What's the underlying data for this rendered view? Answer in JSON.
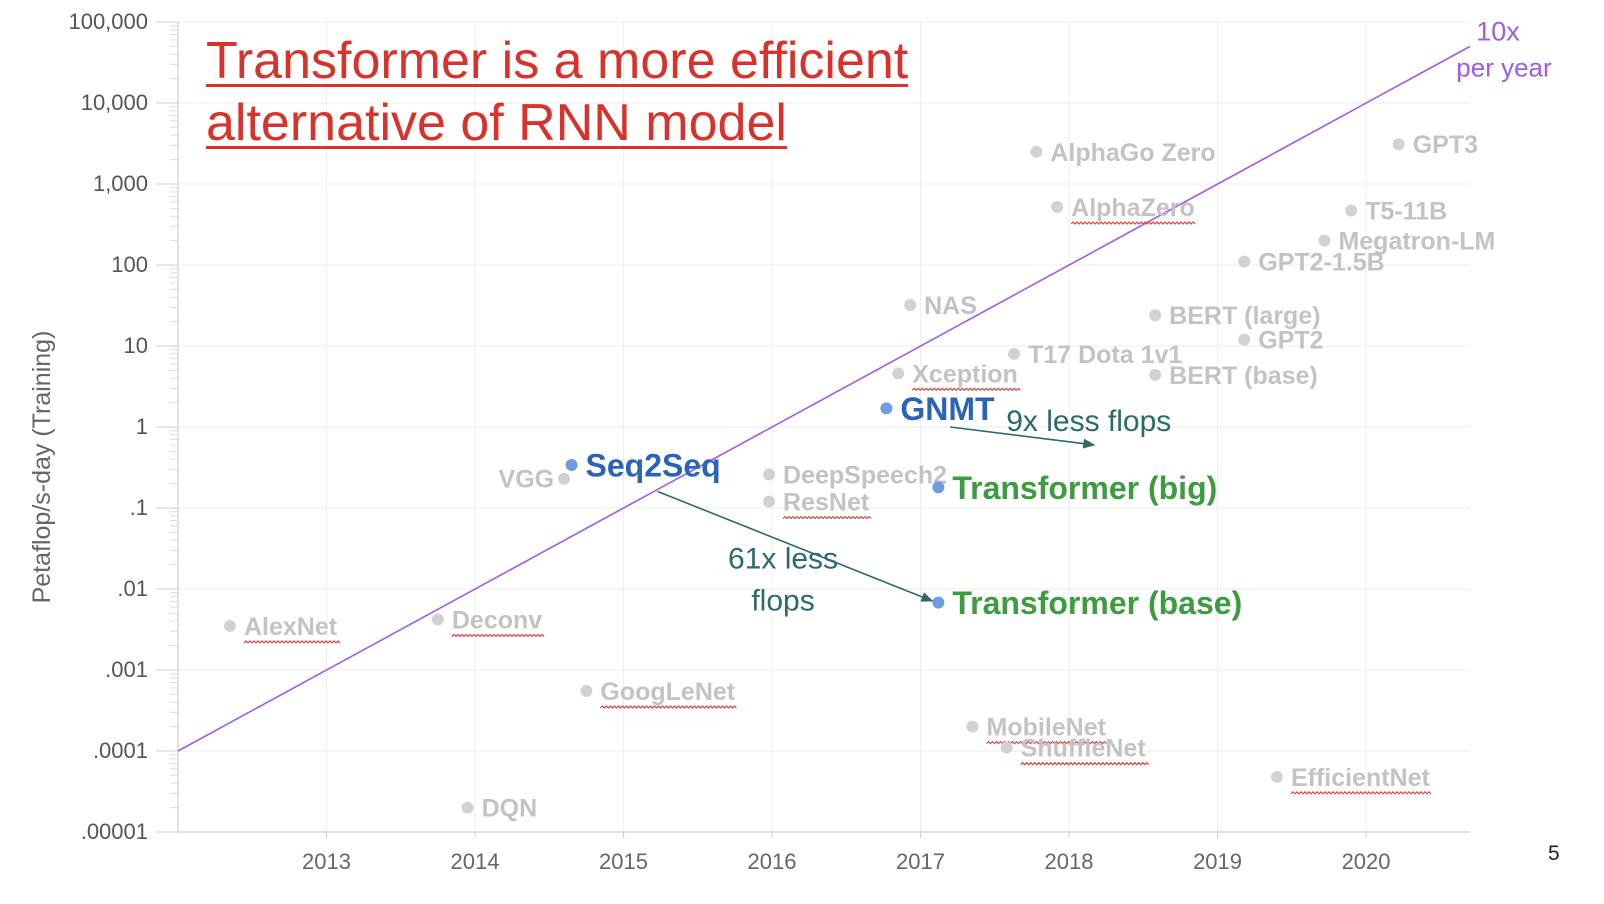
{
  "slide": {
    "headline": [
      "Transformer is a more efficient",
      "alternative of RNN model"
    ],
    "page_number": "5",
    "colors": {
      "headline": "#d9322b",
      "trend_line": "#a25be6",
      "highlight_blue": "#2a63b8",
      "highlight_green": "#3d9b40",
      "gray_label": "#c3c3c3",
      "arrow": "#2b6b6b"
    }
  },
  "chart_data": {
    "type": "scatter",
    "title": "",
    "xlabel": "",
    "ylabel": "Petaflop/s-day (Training)",
    "yscale": "log",
    "xlim": [
      2012.0,
      2020.7
    ],
    "ylim": [
      1e-05,
      100000
    ],
    "xticks": [
      "2013",
      "2014",
      "2015",
      "2016",
      "2017",
      "2018",
      "2019",
      "2020"
    ],
    "xtick_values": [
      2013,
      2014,
      2015,
      2016,
      2017,
      2018,
      2019,
      2020
    ],
    "yticks": [
      "100,000",
      "10,000",
      "1,000",
      "100",
      "10",
      "1",
      ".1",
      ".01",
      ".001",
      ".0001",
      ".00001"
    ],
    "ytick_values": [
      100000,
      10000,
      1000,
      100,
      10,
      1,
      0.1,
      0.01,
      0.001,
      0.0001,
      1e-05
    ],
    "grid": true,
    "trend_line": {
      "label": [
        "10x",
        "per year"
      ],
      "start": [
        2012.0,
        0.0001
      ],
      "end": [
        2020.7,
        50000
      ]
    },
    "points": [
      {
        "name": "AlexNet",
        "x": 2012.35,
        "y": 0.0035,
        "style": "gray",
        "label_pos": "right",
        "squiggle": true
      },
      {
        "name": "Deconv",
        "x": 2013.75,
        "y": 0.0042,
        "style": "gray",
        "label_pos": "right",
        "squiggle": true
      },
      {
        "name": "DQN",
        "x": 2013.95,
        "y": 2e-05,
        "style": "gray",
        "label_pos": "right",
        "squiggle": false
      },
      {
        "name": "VGG",
        "x": 2014.6,
        "y": 0.23,
        "style": "gray",
        "label_pos": "left",
        "squiggle": false
      },
      {
        "name": "Seq2Seq",
        "x": 2014.65,
        "y": 0.34,
        "style": "blue",
        "label_pos": "right",
        "squiggle": false
      },
      {
        "name": "GoogLeNet",
        "x": 2014.75,
        "y": 0.00055,
        "style": "gray",
        "label_pos": "right",
        "squiggle": true
      },
      {
        "name": "DeepSpeech2",
        "x": 2015.98,
        "y": 0.26,
        "style": "gray",
        "label_pos": "right",
        "squiggle": false
      },
      {
        "name": "ResNet",
        "x": 2015.98,
        "y": 0.12,
        "style": "gray",
        "label_pos": "right",
        "squiggle": true
      },
      {
        "name": "GNMT",
        "x": 2016.77,
        "y": 1.7,
        "style": "blue",
        "label_pos": "right",
        "squiggle": false
      },
      {
        "name": "NAS",
        "x": 2016.93,
        "y": 32,
        "style": "gray",
        "label_pos": "right",
        "squiggle": false
      },
      {
        "name": "Xception",
        "x": 2016.85,
        "y": 4.6,
        "style": "gray",
        "label_pos": "right",
        "squiggle": true
      },
      {
        "name": "Transformer (big)",
        "x": 2017.12,
        "y": 0.18,
        "style": "green",
        "label_pos": "right",
        "squiggle": false
      },
      {
        "name": "Transformer (base)",
        "x": 2017.12,
        "y": 0.0068,
        "style": "green",
        "label_pos": "right",
        "squiggle": false
      },
      {
        "name": "MobileNet",
        "x": 2017.35,
        "y": 0.0002,
        "style": "gray",
        "label_pos": "right",
        "squiggle": true
      },
      {
        "name": "ShuffleNet",
        "x": 2017.58,
        "y": 0.00011,
        "style": "gray",
        "label_pos": "right",
        "squiggle": true
      },
      {
        "name": "T17 Dota 1v1",
        "x": 2017.63,
        "y": 8,
        "style": "gray",
        "label_pos": "right",
        "squiggle": false
      },
      {
        "name": "AlphaGo Zero",
        "x": 2017.78,
        "y": 2500,
        "style": "gray",
        "label_pos": "right",
        "squiggle": false
      },
      {
        "name": "AlphaZero",
        "x": 2017.92,
        "y": 520,
        "style": "gray",
        "label_pos": "right",
        "squiggle": true
      },
      {
        "name": "BERT (large)",
        "x": 2018.58,
        "y": 24,
        "style": "gray",
        "label_pos": "right",
        "squiggle": false
      },
      {
        "name": "BERT (base)",
        "x": 2018.58,
        "y": 4.4,
        "style": "gray",
        "label_pos": "right",
        "squiggle": false
      },
      {
        "name": "GPT2-1.5B",
        "x": 2019.18,
        "y": 110,
        "style": "gray",
        "label_pos": "right",
        "squiggle": false
      },
      {
        "name": "GPT2",
        "x": 2019.18,
        "y": 12,
        "style": "gray",
        "label_pos": "right",
        "squiggle": false
      },
      {
        "name": "EfficientNet",
        "x": 2019.4,
        "y": 4.8e-05,
        "style": "gray",
        "label_pos": "right",
        "squiggle": true
      },
      {
        "name": "Megatron-LM",
        "x": 2019.72,
        "y": 200,
        "style": "gray",
        "label_pos": "right",
        "squiggle": false
      },
      {
        "name": "T5-11B",
        "x": 2019.9,
        "y": 470,
        "style": "gray",
        "label_pos": "right",
        "squiggle": false
      },
      {
        "name": "GPT3",
        "x": 2020.22,
        "y": 3100,
        "style": "gray",
        "label_pos": "right",
        "squiggle": false
      }
    ],
    "annotations": [
      {
        "text": [
          "9x less flops"
        ],
        "from": [
          2017.2,
          1.0
        ],
        "to": [
          2018.17,
          0.6
        ]
      },
      {
        "text": [
          "61x less",
          "flops"
        ],
        "from": [
          2015.23,
          0.16
        ],
        "to": [
          2017.08,
          0.0071
        ]
      }
    ]
  }
}
